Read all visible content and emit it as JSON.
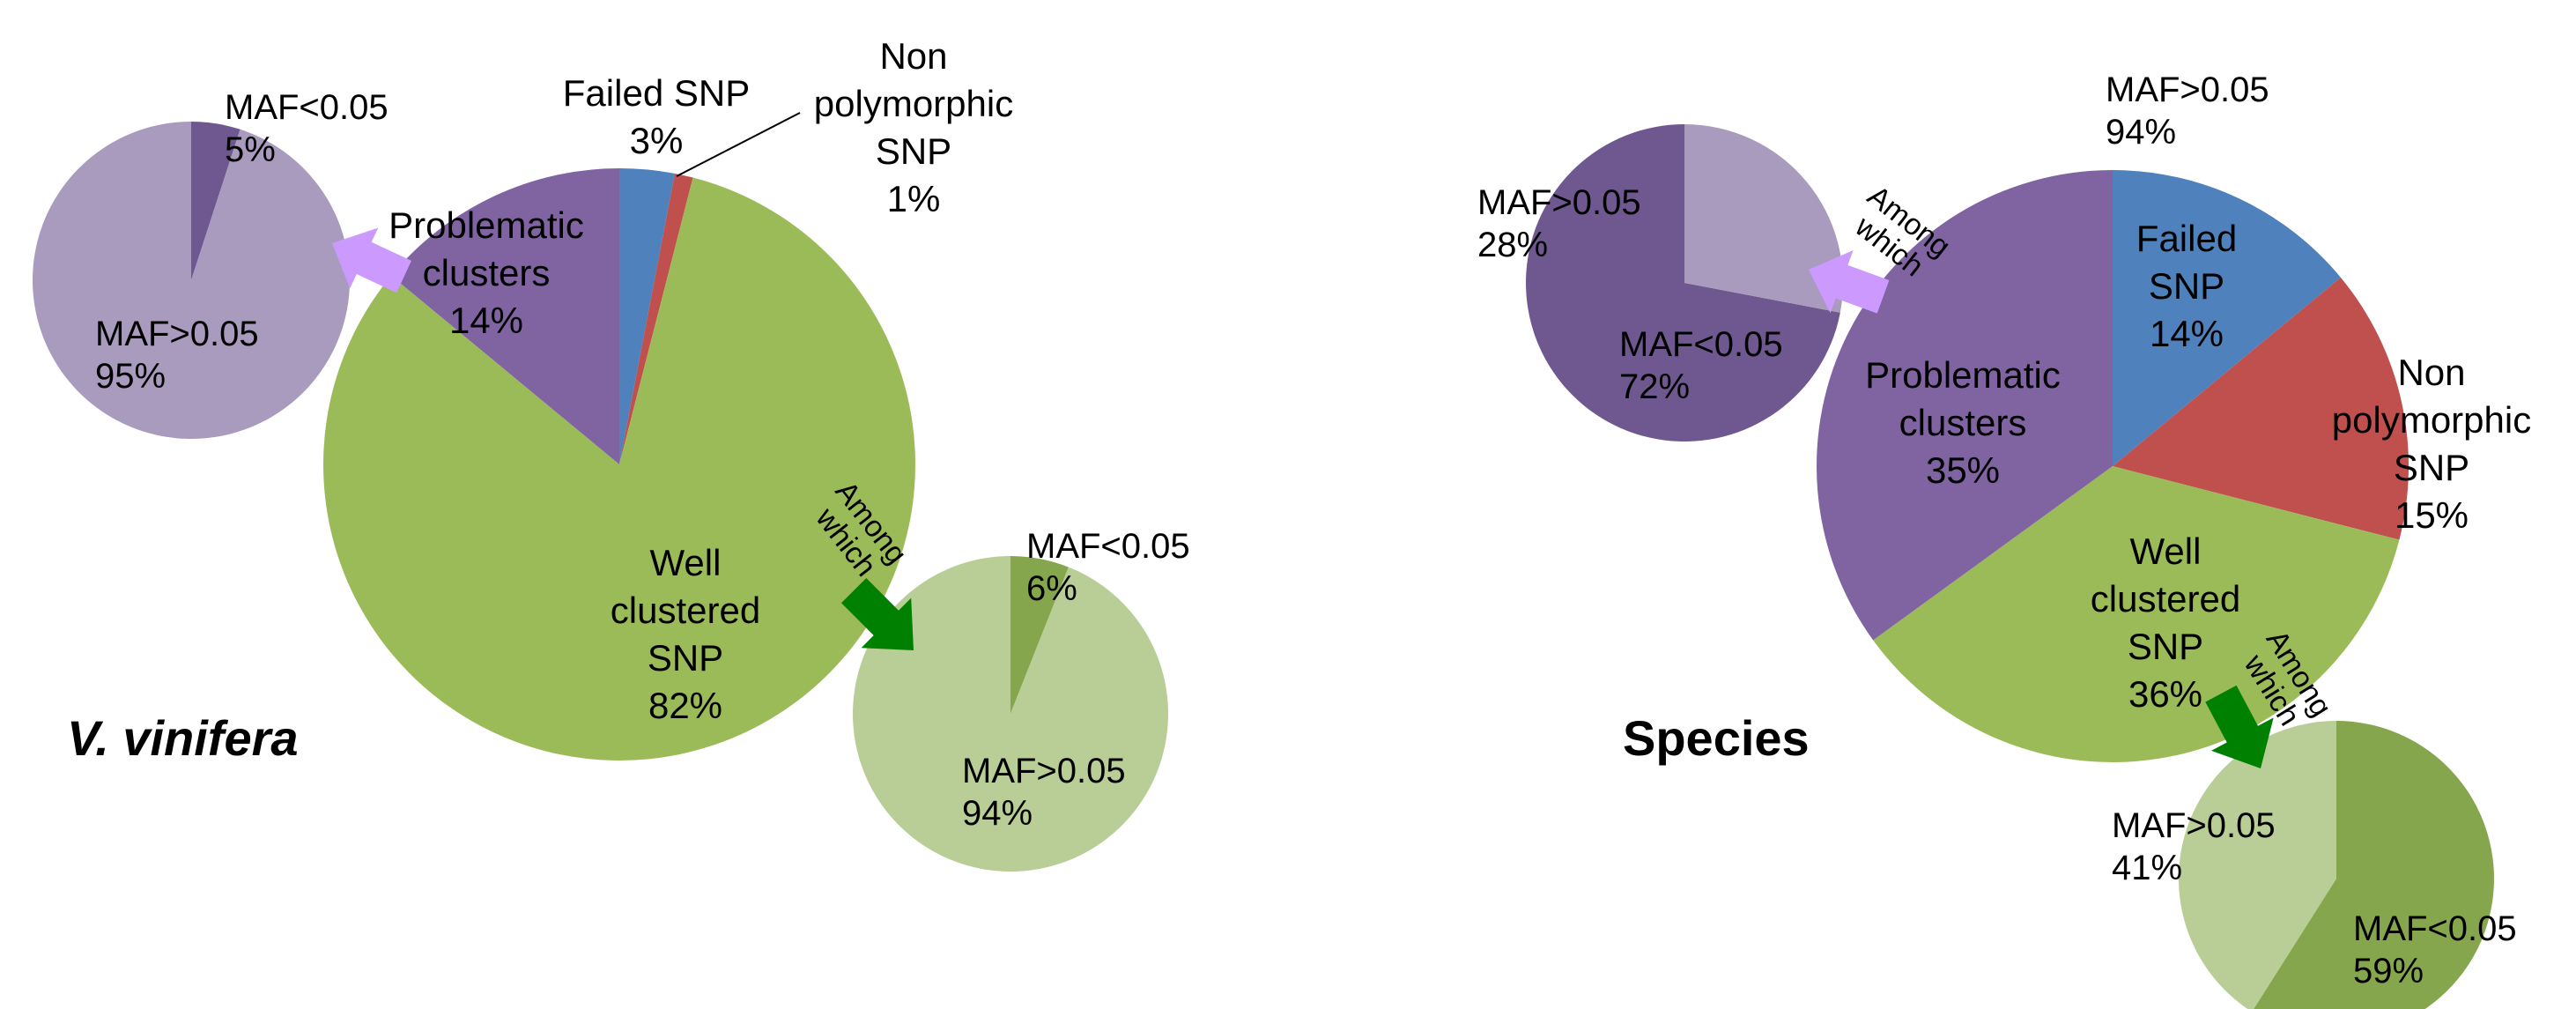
{
  "colors": {
    "failed": "#4F81BD",
    "non_polymorphic": "#C0504D",
    "well_clustered": "#9BBB59",
    "problematic": "#8064A2",
    "purple_dark": "#6F578F",
    "purple_light": "#A99BBE",
    "green_dark": "#86A64E",
    "green_light": "#B8CE96",
    "arrow_purple": "#CC99FF",
    "arrow_green": "#008000",
    "leader": "#000000"
  },
  "chart_data": [
    {
      "type": "pie",
      "title": "V. vinifera",
      "slices": [
        {
          "key": "failed",
          "label_lines": [
            "Failed SNP",
            "3%"
          ],
          "value": 3
        },
        {
          "key": "non_polymorphic",
          "label_lines": [
            "Non",
            "polymorphic",
            "SNP",
            "1%"
          ],
          "value": 1
        },
        {
          "key": "well_clustered",
          "label_lines": [
            "Well",
            "clustered",
            "SNP",
            "82%"
          ],
          "value": 82
        },
        {
          "key": "problematic",
          "label_lines": [
            "Problematic",
            "clusters",
            "14%"
          ],
          "value": 14
        }
      ],
      "breakdowns": [
        {
          "of": "problematic",
          "arrow_label": [
            "Among",
            "which"
          ],
          "slices": [
            {
              "key": "maf_low",
              "label_lines": [
                "MAF<0.05",
                "5%"
              ],
              "value": 5
            },
            {
              "key": "maf_high",
              "label_lines": [
                "MAF>0.05",
                "95%"
              ],
              "value": 95
            }
          ]
        },
        {
          "of": "well_clustered",
          "arrow_label": [
            "Among",
            "which"
          ],
          "slices": [
            {
              "key": "maf_low",
              "label_lines": [
                "MAF<0.05",
                "6%"
              ],
              "value": 6
            },
            {
              "key": "maf_high",
              "label_lines": [
                "MAF>0.05",
                "94%"
              ],
              "value": 94
            }
          ]
        }
      ]
    },
    {
      "type": "pie",
      "title": "Species",
      "slices": [
        {
          "key": "failed",
          "label_lines": [
            "Failed",
            "SNP",
            "14%"
          ],
          "value": 14
        },
        {
          "key": "non_polymorphic",
          "label_lines": [
            "Non",
            "polymorphic",
            "SNP",
            "15%"
          ],
          "value": 15
        },
        {
          "key": "well_clustered",
          "label_lines": [
            "Well",
            "clustered",
            "SNP",
            "36%"
          ],
          "value": 36
        },
        {
          "key": "problematic",
          "label_lines": [
            "Problematic",
            "clusters",
            "35%"
          ],
          "value": 35
        }
      ],
      "breakdowns": [
        {
          "of": "problematic",
          "arrow_label": [
            "Among",
            "which"
          ],
          "slices": [
            {
              "key": "maf_low",
              "label_lines": [
                "MAF<0.05",
                "72%"
              ],
              "value": 72
            },
            {
              "key": "maf_high",
              "label_lines": [
                "MAF>0.05",
                "28%"
              ],
              "value": 28
            }
          ]
        },
        {
          "of": "well_clustered",
          "arrow_label": [
            "Among",
            "which"
          ],
          "slices": [
            {
              "key": "maf_low",
              "label_lines": [
                "MAF<0.05",
                "59%"
              ],
              "value": 59
            },
            {
              "key": "maf_high",
              "label_lines": [
                "MAF>0.05",
                "41%"
              ],
              "value": 41
            }
          ]
        }
      ],
      "floating_labels": [
        {
          "label_lines": [
            "MAF>0.05",
            "94%"
          ]
        }
      ]
    }
  ]
}
